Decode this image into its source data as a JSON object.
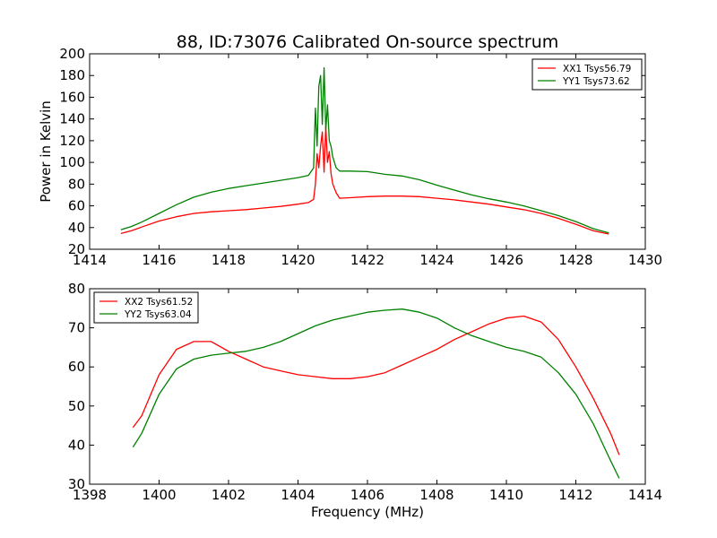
{
  "chart_data": [
    {
      "type": "line",
      "title": "88, ID:73076 Calibrated On-source spectrum",
      "xlabel": "",
      "ylabel": "Power in Kelvin",
      "xlim": [
        1414,
        1430
      ],
      "ylim": [
        20,
        200
      ],
      "xticks": [
        "1414",
        "1416",
        "1418",
        "1420",
        "1422",
        "1424",
        "1426",
        "1428",
        "1430"
      ],
      "yticks": [
        "20",
        "40",
        "60",
        "80",
        "100",
        "120",
        "140",
        "160",
        "180",
        "200"
      ],
      "grid": false,
      "legend_position": "top-right",
      "series": [
        {
          "name": "XX1 Tsys56.79",
          "color": "#ff0000",
          "points": [
            [
              1414.9,
              34.5
            ],
            [
              1415.2,
              37
            ],
            [
              1415.5,
              40.5
            ],
            [
              1416.0,
              46
            ],
            [
              1416.5,
              50
            ],
            [
              1417.0,
              53
            ],
            [
              1417.5,
              54.5
            ],
            [
              1418.0,
              55.5
            ],
            [
              1418.5,
              56.5
            ],
            [
              1419.0,
              58
            ],
            [
              1419.5,
              59.5
            ],
            [
              1420.0,
              61.5
            ],
            [
              1420.3,
              63
            ],
            [
              1420.45,
              66
            ],
            [
              1420.5,
              80
            ],
            [
              1420.55,
              108
            ],
            [
              1420.6,
              95
            ],
            [
              1420.65,
              115
            ],
            [
              1420.7,
              128
            ],
            [
              1420.75,
              91
            ],
            [
              1420.8,
              133
            ],
            [
              1420.85,
              100
            ],
            [
              1420.9,
              110
            ],
            [
              1420.95,
              90
            ],
            [
              1421.0,
              80
            ],
            [
              1421.1,
              72
            ],
            [
              1421.2,
              67
            ],
            [
              1421.5,
              67.5
            ],
            [
              1422.0,
              68.5
            ],
            [
              1422.5,
              69
            ],
            [
              1423.0,
              69
            ],
            [
              1423.5,
              68.5
            ],
            [
              1424.0,
              67
            ],
            [
              1424.5,
              65.5
            ],
            [
              1425.0,
              63.5
            ],
            [
              1425.5,
              61.5
            ],
            [
              1426.0,
              59
            ],
            [
              1426.5,
              56.5
            ],
            [
              1427.0,
              53
            ],
            [
              1427.5,
              48.5
            ],
            [
              1428.0,
              43
            ],
            [
              1428.5,
              37
            ],
            [
              1428.95,
              34
            ]
          ]
        },
        {
          "name": "YY1 Tsys73.62",
          "color": "#008000",
          "points": [
            [
              1414.9,
              38
            ],
            [
              1415.2,
              41
            ],
            [
              1415.5,
              45
            ],
            [
              1416.0,
              53
            ],
            [
              1416.5,
              61
            ],
            [
              1417.0,
              68
            ],
            [
              1417.5,
              72.5
            ],
            [
              1418.0,
              76
            ],
            [
              1418.5,
              78.5
            ],
            [
              1419.0,
              81
            ],
            [
              1419.5,
              83.5
            ],
            [
              1420.0,
              86
            ],
            [
              1420.3,
              88
            ],
            [
              1420.45,
              95
            ],
            [
              1420.5,
              150
            ],
            [
              1420.55,
              115
            ],
            [
              1420.6,
              170
            ],
            [
              1420.65,
              180
            ],
            [
              1420.7,
              135
            ],
            [
              1420.75,
              187
            ],
            [
              1420.8,
              130
            ],
            [
              1420.85,
              153
            ],
            [
              1420.9,
              120
            ],
            [
              1420.95,
              115
            ],
            [
              1421.0,
              105
            ],
            [
              1421.1,
              95
            ],
            [
              1421.2,
              92
            ],
            [
              1421.5,
              92
            ],
            [
              1422.0,
              91.5
            ],
            [
              1422.5,
              89
            ],
            [
              1423.0,
              87.5
            ],
            [
              1423.5,
              84
            ],
            [
              1424.0,
              79
            ],
            [
              1424.5,
              74.5
            ],
            [
              1425.0,
              70
            ],
            [
              1425.5,
              66.5
            ],
            [
              1426.0,
              63.5
            ],
            [
              1426.5,
              60
            ],
            [
              1427.0,
              55.5
            ],
            [
              1427.5,
              51
            ],
            [
              1428.0,
              45.5
            ],
            [
              1428.5,
              39
            ],
            [
              1428.95,
              35
            ]
          ]
        }
      ]
    },
    {
      "type": "line",
      "title": "",
      "xlabel": "Frequency (MHz)",
      "ylabel": "",
      "xlim": [
        1398,
        1414
      ],
      "ylim": [
        30,
        80
      ],
      "xticks": [
        "1398",
        "1400",
        "1402",
        "1404",
        "1406",
        "1408",
        "1410",
        "1412",
        "1414"
      ],
      "yticks": [
        "30",
        "40",
        "50",
        "60",
        "70",
        "80"
      ],
      "grid": false,
      "legend_position": "top-left",
      "series": [
        {
          "name": "XX2 Tsys61.52",
          "color": "#ff0000",
          "points": [
            [
              1399.25,
              44.5
            ],
            [
              1399.5,
              47.5
            ],
            [
              1400.0,
              58
            ],
            [
              1400.5,
              64.5
            ],
            [
              1401.0,
              66.5
            ],
            [
              1401.5,
              66.5
            ],
            [
              1402.0,
              64
            ],
            [
              1402.5,
              62
            ],
            [
              1403.0,
              60
            ],
            [
              1403.5,
              59
            ],
            [
              1404.0,
              58
            ],
            [
              1404.5,
              57.5
            ],
            [
              1405.0,
              57
            ],
            [
              1405.5,
              57
            ],
            [
              1406.0,
              57.5
            ],
            [
              1406.5,
              58.5
            ],
            [
              1407.0,
              60.5
            ],
            [
              1407.5,
              62.5
            ],
            [
              1408.0,
              64.5
            ],
            [
              1408.5,
              67
            ],
            [
              1409.0,
              69
            ],
            [
              1409.5,
              71
            ],
            [
              1410.0,
              72.5
            ],
            [
              1410.5,
              73
            ],
            [
              1411.0,
              71.5
            ],
            [
              1411.5,
              67
            ],
            [
              1412.0,
              60
            ],
            [
              1412.5,
              52
            ],
            [
              1413.0,
              43
            ],
            [
              1413.25,
              37.5
            ]
          ]
        },
        {
          "name": "YY2 Tsys63.04",
          "color": "#008000",
          "points": [
            [
              1399.25,
              39.5
            ],
            [
              1399.5,
              43
            ],
            [
              1400.0,
              53
            ],
            [
              1400.5,
              59.5
            ],
            [
              1401.0,
              62
            ],
            [
              1401.5,
              63
            ],
            [
              1402.0,
              63.5
            ],
            [
              1402.5,
              64
            ],
            [
              1403.0,
              65
            ],
            [
              1403.5,
              66.5
            ],
            [
              1404.0,
              68.5
            ],
            [
              1404.5,
              70.5
            ],
            [
              1405.0,
              72
            ],
            [
              1405.5,
              73
            ],
            [
              1406.0,
              74
            ],
            [
              1406.5,
              74.5
            ],
            [
              1407.0,
              74.8
            ],
            [
              1407.5,
              74
            ],
            [
              1408.0,
              72.5
            ],
            [
              1408.5,
              70
            ],
            [
              1409.0,
              68
            ],
            [
              1409.5,
              66.5
            ],
            [
              1410.0,
              65
            ],
            [
              1410.5,
              64
            ],
            [
              1411.0,
              62.5
            ],
            [
              1411.5,
              58.5
            ],
            [
              1412.0,
              53
            ],
            [
              1412.5,
              45.5
            ],
            [
              1413.0,
              36
            ],
            [
              1413.25,
              31.5
            ]
          ]
        }
      ]
    }
  ]
}
